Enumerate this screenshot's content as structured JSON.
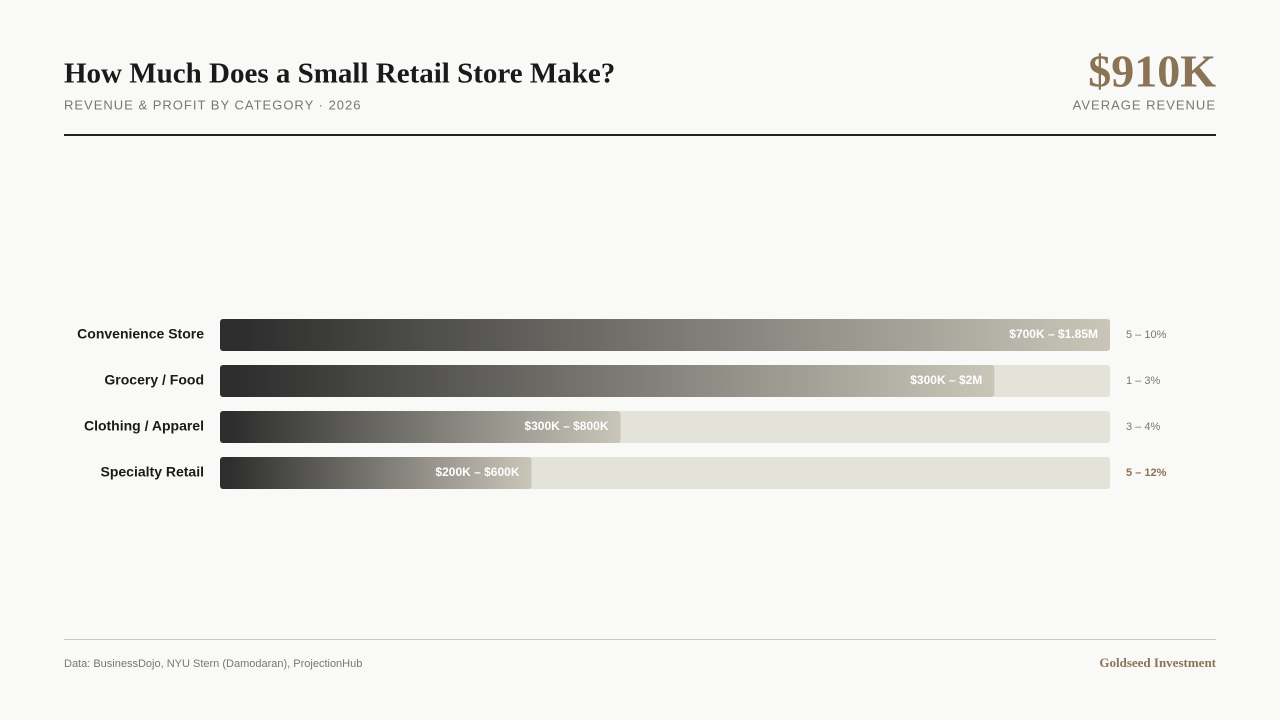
{
  "header": {
    "title": "How Much Does a Small Retail Store Make?",
    "subtitle": "REVENUE & PROFIT BY CATEGORY · 2026",
    "stat": "$910K",
    "stat_label": "AVERAGE REVENUE"
  },
  "chart_data": {
    "type": "bar",
    "orientation": "horizontal",
    "categories": [
      "Convenience Store",
      "Grocery / Food",
      "Clothing / Apparel",
      "Specialty Retail"
    ],
    "values": [
      100,
      87,
      45,
      35
    ],
    "xlim": [
      0,
      100
    ],
    "revenue_ranges": [
      "$700K – $1.85M",
      "$300K – $2M",
      "$300K – $800K",
      "$200K – $600K"
    ],
    "margins": [
      "5 – 10%",
      "1 – 3%",
      "3 – 4%",
      "5 – 12%"
    ],
    "highlight_index": 3,
    "colors": {
      "bar_start": "#2e2e2e",
      "bar_end": "#c9c6b9",
      "track": "#e4e3da",
      "highlight": "#8b7355",
      "margin": "#777777"
    }
  },
  "footer": {
    "source": "Data: BusinessDojo, NYU Stern (Damodaran), ProjectionHub",
    "brand": "Goldseed Investment"
  }
}
